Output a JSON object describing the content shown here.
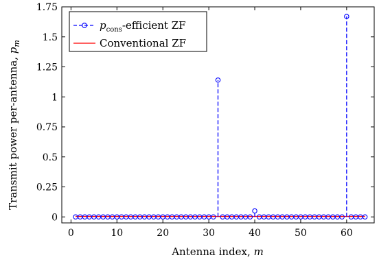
{
  "chart_data": {
    "type": "stem",
    "xlabel": "Antenna index, m",
    "ylabel": "Transmit power per-antenna, p_m",
    "xlim": [
      -2,
      66
    ],
    "ylim": [
      -0.05,
      1.75
    ],
    "xticks": [
      0,
      10,
      20,
      30,
      40,
      50,
      60
    ],
    "xtick_labels": [
      "0",
      "10",
      "20",
      "30",
      "40",
      "50",
      "60"
    ],
    "yticks": [
      0,
      0.25,
      0.5,
      0.75,
      1,
      1.25,
      1.5,
      1.75
    ],
    "ytick_labels": [
      "0",
      "0.25",
      "0.5",
      "0.75",
      "1",
      "1.25",
      "1.5",
      "1.75"
    ],
    "legend_placement": "top-left",
    "grid": false,
    "series": [
      {
        "name": "p_cons-efficient ZF",
        "color": "#0000ff",
        "style": "dashed-stem-circle",
        "x": [
          1,
          2,
          3,
          4,
          5,
          6,
          7,
          8,
          9,
          10,
          11,
          12,
          13,
          14,
          15,
          16,
          17,
          18,
          19,
          20,
          21,
          22,
          23,
          24,
          25,
          26,
          27,
          28,
          29,
          30,
          31,
          32,
          33,
          34,
          35,
          36,
          37,
          38,
          39,
          40,
          41,
          42,
          43,
          44,
          45,
          46,
          47,
          48,
          49,
          50,
          51,
          52,
          53,
          54,
          55,
          56,
          57,
          58,
          59,
          60,
          61,
          62,
          63,
          64
        ],
        "values": [
          0,
          0,
          0,
          0,
          0,
          0,
          0,
          0,
          0,
          0,
          0,
          0,
          0,
          0,
          0,
          0,
          0,
          0,
          0,
          0,
          0,
          0,
          0,
          0,
          0,
          0,
          0,
          0,
          0,
          0,
          0,
          1.14,
          0,
          0,
          0,
          0,
          0,
          0,
          0,
          0.05,
          0,
          0,
          0,
          0,
          0,
          0,
          0,
          0,
          0,
          0,
          0,
          0,
          0,
          0,
          0,
          0,
          0,
          0,
          0,
          1.67,
          0,
          0,
          0,
          0
        ]
      },
      {
        "name": "Conventional ZF",
        "color": "#ff0000",
        "style": "solid-line",
        "x": [
          1,
          64
        ],
        "values": [
          0.004,
          0.004
        ]
      }
    ]
  },
  "legend": {
    "entry1_sym": "p",
    "entry1_sub": "cons",
    "entry1_rest": "-efficient ZF",
    "entry2": "Conventional ZF"
  },
  "labels": {
    "xlabel_text": "Antenna index, ",
    "xlabel_var": "m",
    "ylabel_text": "Transmit power per-antenna, ",
    "ylabel_var": "p",
    "ylabel_sub": "m"
  }
}
